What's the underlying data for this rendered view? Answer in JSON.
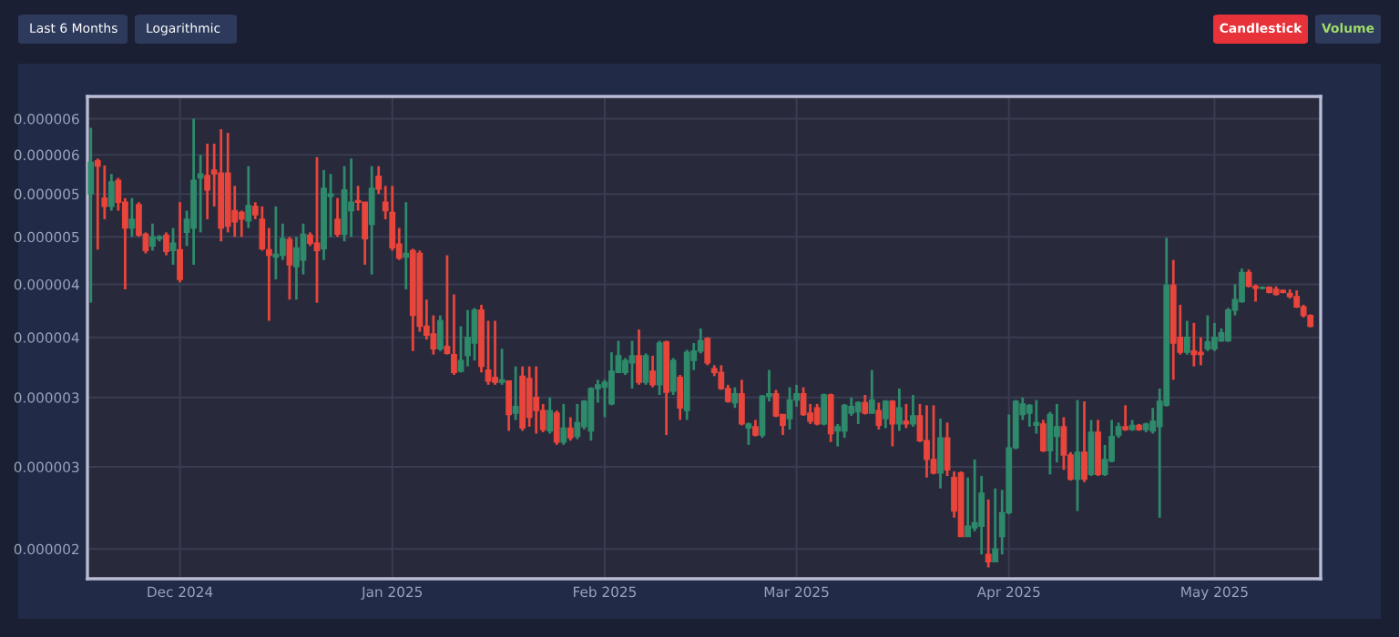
{
  "chart_data": {
    "type": "candlestick",
    "annotations": [
      "Last 6 Months",
      "Logarithmic",
      "Candlestick",
      "Volume"
    ],
    "log": true,
    "grid": true,
    "ylim": [
      2.34e-06,
      6.83e-06
    ],
    "yticks": [
      {
        "value": 6.5e-06,
        "label": "0.000006"
      },
      {
        "value": 6e-06,
        "label": "0.000006"
      },
      {
        "value": 5.5e-06,
        "label": "0.000005"
      },
      {
        "value": 5e-06,
        "label": "0.000005"
      },
      {
        "value": 4.5e-06,
        "label": "0.000004"
      },
      {
        "value": 4e-06,
        "label": "0.000004"
      },
      {
        "value": 3.5e-06,
        "label": "0.000003"
      },
      {
        "value": 3e-06,
        "label": "0.000003"
      },
      {
        "value": 2.5e-06,
        "label": "0.000002"
      }
    ],
    "xlim": [
      "2024-11-17T12:00",
      "2025-05-16T12:00"
    ],
    "xticks": [
      {
        "value": "2024-12-01",
        "label": "Dec 2024"
      },
      {
        "value": "2025-01-01",
        "label": "Jan 2025"
      },
      {
        "value": "2025-02-01",
        "label": "Feb 2025"
      },
      {
        "value": "2025-03-01",
        "label": "Mar 2025"
      },
      {
        "value": "2025-04-01",
        "label": "Apr 2025"
      },
      {
        "value": "2025-05-01",
        "label": "May 2025"
      }
    ],
    "x": [
      "2024-11-18",
      "2024-11-19",
      "2024-11-20",
      "2024-11-21",
      "2024-11-22",
      "2024-11-23",
      "2024-11-24",
      "2024-11-25",
      "2024-11-26",
      "2024-11-27",
      "2024-11-28",
      "2024-11-29",
      "2024-11-30",
      "2024-12-01",
      "2024-12-02",
      "2024-12-03",
      "2024-12-04",
      "2024-12-05",
      "2024-12-06",
      "2024-12-07",
      "2024-12-08",
      "2024-12-09",
      "2024-12-10",
      "2024-12-11",
      "2024-12-12",
      "2024-12-13",
      "2024-12-14",
      "2024-12-15",
      "2024-12-16",
      "2024-12-17",
      "2024-12-18",
      "2024-12-19",
      "2024-12-20",
      "2024-12-21",
      "2024-12-22",
      "2024-12-23",
      "2024-12-24",
      "2024-12-25",
      "2024-12-26",
      "2024-12-27",
      "2024-12-28",
      "2024-12-29",
      "2024-12-30",
      "2024-12-31",
      "2025-01-01",
      "2025-01-02",
      "2025-01-03",
      "2025-01-04",
      "2025-01-05",
      "2025-01-06",
      "2025-01-07",
      "2025-01-08",
      "2025-01-09",
      "2025-01-10",
      "2025-01-11",
      "2025-01-12",
      "2025-01-13",
      "2025-01-14",
      "2025-01-15",
      "2025-01-16",
      "2025-01-17",
      "2025-01-18",
      "2025-01-19",
      "2025-01-20",
      "2025-01-21",
      "2025-01-22",
      "2025-01-23",
      "2025-01-24",
      "2025-01-25",
      "2025-01-26",
      "2025-01-27",
      "2025-01-28",
      "2025-01-29",
      "2025-01-30",
      "2025-01-31",
      "2025-02-01",
      "2025-02-02",
      "2025-02-03",
      "2025-02-04",
      "2025-02-05",
      "2025-02-06",
      "2025-02-07",
      "2025-02-08",
      "2025-02-09",
      "2025-02-10",
      "2025-02-11",
      "2025-02-12",
      "2025-02-13",
      "2025-02-14",
      "2025-02-15",
      "2025-02-16",
      "2025-02-17",
      "2025-02-18",
      "2025-02-19",
      "2025-02-20",
      "2025-02-21",
      "2025-02-22",
      "2025-02-23",
      "2025-02-24",
      "2025-02-25",
      "2025-02-26",
      "2025-02-27",
      "2025-02-28",
      "2025-03-01",
      "2025-03-02",
      "2025-03-03",
      "2025-03-04",
      "2025-03-05",
      "2025-03-06",
      "2025-03-07",
      "2025-03-08",
      "2025-03-09",
      "2025-03-10",
      "2025-03-11",
      "2025-03-12",
      "2025-03-13",
      "2025-03-14",
      "2025-03-15",
      "2025-03-16",
      "2025-03-17",
      "2025-03-18",
      "2025-03-19",
      "2025-03-20",
      "2025-03-21",
      "2025-03-22",
      "2025-03-23",
      "2025-03-24",
      "2025-03-25",
      "2025-03-26",
      "2025-03-27",
      "2025-03-28",
      "2025-03-29",
      "2025-03-30",
      "2025-03-31",
      "2025-04-01",
      "2025-04-02",
      "2025-04-03",
      "2025-04-04",
      "2025-04-05",
      "2025-04-06",
      "2025-04-07",
      "2025-04-08",
      "2025-04-09",
      "2025-04-10",
      "2025-04-11",
      "2025-04-12",
      "2025-04-13",
      "2025-04-14",
      "2025-04-15",
      "2025-04-16",
      "2025-04-17",
      "2025-04-18",
      "2025-04-19",
      "2025-04-20",
      "2025-04-21",
      "2025-04-22",
      "2025-04-23",
      "2025-04-24",
      "2025-04-25",
      "2025-04-26",
      "2025-04-27",
      "2025-04-28",
      "2025-04-29",
      "2025-04-30",
      "2025-05-01",
      "2025-05-02",
      "2025-05-03",
      "2025-05-04",
      "2025-05-05",
      "2025-05-06",
      "2025-05-07",
      "2025-05-08",
      "2025-05-09",
      "2025-05-10",
      "2025-05-11",
      "2025-05-12",
      "2025-05-13",
      "2025-05-14",
      "2025-05-15"
    ],
    "ohlc": [
      [
        5.5e-06,
        6.37e-06,
        4.32e-06,
        5.9e-06
      ],
      [
        5.92e-06,
        5.95e-06,
        4.86e-06,
        5.85e-06
      ],
      [
        5.45e-06,
        5.86e-06,
        5.2e-06,
        5.35e-06
      ],
      [
        5.35e-06,
        5.75e-06,
        5.3e-06,
        5.65e-06
      ],
      [
        5.67e-06,
        5.7e-06,
        5.3e-06,
        5.4e-06
      ],
      [
        5.4e-06,
        5.45e-06,
        4.45e-06,
        5.1e-06
      ],
      [
        5.1e-06,
        5.45e-06,
        5e-06,
        5.2e-06
      ],
      [
        5.37e-06,
        5.4e-06,
        5e-06,
        5.02e-06
      ],
      [
        5.03e-06,
        5.05e-06,
        4.82e-06,
        4.85e-06
      ],
      [
        4.9e-06,
        5.15e-06,
        4.85e-06,
        5e-06
      ],
      [
        4.98e-06,
        5.02e-06,
        4.95e-06,
        5e-06
      ],
      [
        5.02e-06,
        5.05e-06,
        4.8e-06,
        4.84e-06
      ],
      [
        4.85e-06,
        5.1e-06,
        4.7e-06,
        4.93e-06
      ],
      [
        4.86e-06,
        5.4e-06,
        4.52e-06,
        4.55e-06
      ],
      [
        5.05e-06,
        5.3e-06,
        4.9e-06,
        5.2e-06
      ],
      [
        5.1e-06,
        6.5e-06,
        4.7e-06,
        5.67e-06
      ],
      [
        5.7e-06,
        6e-06,
        5.05e-06,
        5.75e-06
      ],
      [
        5.73e-06,
        6.15e-06,
        5.2e-06,
        5.55e-06
      ],
      [
        5.8e-06,
        6.15e-06,
        5.35e-06,
        5.75e-06
      ],
      [
        5.76e-06,
        6.35e-06,
        4.95e-06,
        5.1e-06
      ],
      [
        5.76e-06,
        6.3e-06,
        5.05e-06,
        5.12e-06
      ],
      [
        5.3e-06,
        5.6e-06,
        5e-06,
        5.17e-06
      ],
      [
        5.28e-06,
        5.3e-06,
        5e-06,
        5.2e-06
      ],
      [
        5.18e-06,
        5.85e-06,
        5.1e-06,
        5.36e-06
      ],
      [
        5.35e-06,
        5.4e-06,
        5.2e-06,
        5.25e-06
      ],
      [
        5.2e-06,
        5.35e-06,
        4.85e-06,
        4.87e-06
      ],
      [
        4.86e-06,
        5.1e-06,
        4.15e-06,
        4.8e-06
      ],
      [
        4.78e-06,
        5.35e-06,
        4.55e-06,
        4.81e-06
      ],
      [
        4.8e-06,
        5.15e-06,
        4.75e-06,
        4.98e-06
      ],
      [
        4.97e-06,
        5e-06,
        4.35e-06,
        4.7e-06
      ],
      [
        4.68e-06,
        5e-06,
        4.35e-06,
        4.88e-06
      ],
      [
        4.75e-06,
        5.15e-06,
        4.6e-06,
        5.03e-06
      ],
      [
        5.02e-06,
        5.05e-06,
        4.9e-06,
        4.93e-06
      ],
      [
        4.93e-06,
        5.97e-06,
        4.32e-06,
        4.85e-06
      ],
      [
        4.87e-06,
        5.8e-06,
        4.75e-06,
        5.57e-06
      ],
      [
        5.47e-06,
        5.75e-06,
        5e-06,
        5.5e-06
      ],
      [
        5.2e-06,
        5.45e-06,
        5e-06,
        5.03e-06
      ],
      [
        5.03e-06,
        5.85e-06,
        4.95e-06,
        5.55e-06
      ],
      [
        5.3e-06,
        5.95e-06,
        5e-06,
        5.4e-06
      ],
      [
        5.42e-06,
        5.6e-06,
        5.3e-06,
        5.4e-06
      ],
      [
        5.4e-06,
        5.4e-06,
        4.7e-06,
        4.98e-06
      ],
      [
        5.14e-06,
        5.85e-06,
        4.6e-06,
        5.57e-06
      ],
      [
        5.72e-06,
        5.85e-06,
        5.5e-06,
        5.56e-06
      ],
      [
        5.4e-06,
        5.6e-06,
        5.2e-06,
        5.3e-06
      ],
      [
        5.28e-06,
        5.6e-06,
        4.85e-06,
        4.88e-06
      ],
      [
        4.92e-06,
        5.1e-06,
        4.75e-06,
        4.77e-06
      ],
      [
        4.78e-06,
        5.4e-06,
        4.45e-06,
        4.82e-06
      ],
      [
        4.85e-06,
        4.87e-06,
        3.88e-06,
        4.2e-06
      ],
      [
        4.82e-06,
        4.85e-06,
        4.05e-06,
        4.1e-06
      ],
      [
        4.1e-06,
        4.35e-06,
        3.98e-06,
        4.02e-06
      ],
      [
        4.03e-06,
        4.2e-06,
        3.85e-06,
        3.9e-06
      ],
      [
        3.9e-06,
        4.2e-06,
        3.88e-06,
        4.15e-06
      ],
      [
        3.92e-06,
        4.8e-06,
        3.85e-06,
        3.86e-06
      ],
      [
        3.85e-06,
        4.4e-06,
        3.68e-06,
        3.7e-06
      ],
      [
        3.71e-06,
        4.1e-06,
        3.7e-06,
        3.8e-06
      ],
      [
        3.84e-06,
        4.25e-06,
        3.75e-06,
        4e-06
      ],
      [
        3.95e-06,
        4.27e-06,
        3.8e-06,
        4.25e-06
      ],
      [
        4.25e-06,
        4.3e-06,
        3.7e-06,
        3.75e-06
      ],
      [
        3.72e-06,
        4.15e-06,
        3.6e-06,
        3.63e-06
      ],
      [
        3.66e-06,
        4.15e-06,
        3.6e-06,
        3.62e-06
      ],
      [
        3.62e-06,
        3.9e-06,
        3.6e-06,
        3.64e-06
      ],
      [
        3.63e-06,
        3.63e-06,
        3.25e-06,
        3.37e-06
      ],
      [
        3.38e-06,
        3.75e-06,
        3.33e-06,
        3.43e-06
      ],
      [
        3.67e-06,
        3.75e-06,
        3.25e-06,
        3.27e-06
      ],
      [
        3.65e-06,
        3.75e-06,
        3.28e-06,
        3.35e-06
      ],
      [
        3.5e-06,
        3.75e-06,
        3.23e-06,
        3.4e-06
      ],
      [
        3.4e-06,
        3.45e-06,
        3.24e-06,
        3.26e-06
      ],
      [
        3.25e-06,
        3.5e-06,
        3.23e-06,
        3.4e-06
      ],
      [
        3.38e-06,
        3.4e-06,
        3.15e-06,
        3.17e-06
      ],
      [
        3.17e-06,
        3.45e-06,
        3.15e-06,
        3.27e-06
      ],
      [
        3.27e-06,
        3.35e-06,
        3.18e-06,
        3.2e-06
      ],
      [
        3.21e-06,
        3.45e-06,
        3.19e-06,
        3.31e-06
      ],
      [
        3.28e-06,
        3.48e-06,
        3.26e-06,
        3.47e-06
      ],
      [
        3.25e-06,
        3.58e-06,
        3.18e-06,
        3.57e-06
      ],
      [
        3.57e-06,
        3.64e-06,
        3.46e-06,
        3.6e-06
      ],
      [
        3.58e-06,
        3.64e-06,
        3.35e-06,
        3.62e-06
      ],
      [
        3.45e-06,
        3.87e-06,
        3.44e-06,
        3.71e-06
      ],
      [
        3.7e-06,
        3.97e-06,
        3.7e-06,
        3.84e-06
      ],
      [
        3.7e-06,
        3.82e-06,
        3.68e-06,
        3.8e-06
      ],
      [
        3.78e-06,
        3.97e-06,
        3.57e-06,
        3.84e-06
      ],
      [
        3.84e-06,
        4.07e-06,
        3.6e-06,
        3.62e-06
      ],
      [
        3.62e-06,
        3.86e-06,
        3.6e-06,
        3.84e-06
      ],
      [
        3.71e-06,
        3.84e-06,
        3.58e-06,
        3.6e-06
      ],
      [
        3.6e-06,
        3.97e-06,
        3.52e-06,
        3.95e-06
      ],
      [
        3.96e-06,
        3.97e-06,
        3.22e-06,
        3.54e-06
      ],
      [
        3.55e-06,
        3.82e-06,
        3.52e-06,
        3.8e-06
      ],
      [
        3.66e-06,
        3.68e-06,
        3.33e-06,
        3.42e-06
      ],
      [
        3.4e-06,
        3.89e-06,
        3.33e-06,
        3.87e-06
      ],
      [
        3.8e-06,
        3.95e-06,
        3.72e-06,
        3.88e-06
      ],
      [
        3.88e-06,
        4.08e-06,
        3.86e-06,
        3.97e-06
      ],
      [
        3.99e-06,
        4e-06,
        3.76e-06,
        3.78e-06
      ],
      [
        3.73e-06,
        3.76e-06,
        3.67e-06,
        3.7e-06
      ],
      [
        3.7e-06,
        3.76e-06,
        3.56e-06,
        3.57e-06
      ],
      [
        3.57e-06,
        3.6e-06,
        3.46e-06,
        3.47e-06
      ],
      [
        3.46e-06,
        3.58e-06,
        3.42e-06,
        3.53e-06
      ],
      [
        3.53e-06,
        3.64e-06,
        3.29e-06,
        3.3e-06
      ],
      [
        3.27e-06,
        3.31e-06,
        3.15e-06,
        3.3e-06
      ],
      [
        3.28e-06,
        3.33e-06,
        3.21e-06,
        3.22e-06
      ],
      [
        3.22e-06,
        3.52e-06,
        3.2e-06,
        3.51e-06
      ],
      [
        3.51e-06,
        3.72e-06,
        3.47e-06,
        3.53e-06
      ],
      [
        3.53e-06,
        3.56e-06,
        3.35e-06,
        3.36e-06
      ],
      [
        3.37e-06,
        3.37e-06,
        3.22e-06,
        3.29e-06
      ],
      [
        3.34e-06,
        3.58e-06,
        3.26e-06,
        3.48e-06
      ],
      [
        3.48e-06,
        3.6e-06,
        3.43e-06,
        3.53e-06
      ],
      [
        3.53e-06,
        3.58e-06,
        3.36e-06,
        3.37e-06
      ],
      [
        3.38e-06,
        3.45e-06,
        3.3e-06,
        3.32e-06
      ],
      [
        3.42e-06,
        3.45e-06,
        3.29e-06,
        3.3e-06
      ],
      [
        3.3e-06,
        3.53e-06,
        3.29e-06,
        3.52e-06
      ],
      [
        3.52e-06,
        3.53e-06,
        3.17e-06,
        3.23e-06
      ],
      [
        3.25e-06,
        3.3e-06,
        3.14e-06,
        3.28e-06
      ],
      [
        3.25e-06,
        3.45e-06,
        3.2e-06,
        3.44e-06
      ],
      [
        3.38e-06,
        3.5e-06,
        3.36e-06,
        3.43e-06
      ],
      [
        3.39e-06,
        3.47e-06,
        3.3e-06,
        3.46e-06
      ],
      [
        3.46e-06,
        3.52e-06,
        3.37e-06,
        3.38e-06
      ],
      [
        3.38e-06,
        3.72e-06,
        3.38e-06,
        3.48e-06
      ],
      [
        3.4e-06,
        3.46e-06,
        3.26e-06,
        3.29e-06
      ],
      [
        3.34e-06,
        3.48e-06,
        3.27e-06,
        3.47e-06
      ],
      [
        3.47e-06,
        3.48e-06,
        3.14e-06,
        3.3e-06
      ],
      [
        3.3e-06,
        3.57e-06,
        3.25e-06,
        3.42e-06
      ],
      [
        3.32e-06,
        3.45e-06,
        3.27e-06,
        3.3e-06
      ],
      [
        3.3e-06,
        3.52e-06,
        3.28e-06,
        3.36e-06
      ],
      [
        3.36e-06,
        3.45e-06,
        3.17e-06,
        3.18e-06
      ],
      [
        3.18e-06,
        3.44e-06,
        2.93e-06,
        3.05e-06
      ],
      [
        3.05e-06,
        3.44e-06,
        2.95e-06,
        2.96e-06
      ],
      [
        2.96e-06,
        3.34e-06,
        2.86e-06,
        3.2e-06
      ],
      [
        3.2e-06,
        3.31e-06,
        2.94e-06,
        2.98e-06
      ],
      [
        2.93e-06,
        2.97e-06,
        2.68e-06,
        2.72e-06
      ],
      [
        2.96e-06,
        2.97e-06,
        2.57e-06,
        2.57e-06
      ],
      [
        2.57e-06,
        2.93e-06,
        2.57e-06,
        2.63e-06
      ],
      [
        2.62e-06,
        3.05e-06,
        2.6e-06,
        2.65e-06
      ],
      [
        2.63e-06,
        2.94e-06,
        2.47e-06,
        2.83e-06
      ],
      [
        2.47e-06,
        2.79e-06,
        2.4e-06,
        2.43e-06
      ],
      [
        2.43e-06,
        2.86e-06,
        2.43e-06,
        2.5e-06
      ],
      [
        2.57e-06,
        2.85e-06,
        2.47e-06,
        2.71e-06
      ],
      [
        2.71e-06,
        3.37e-06,
        2.7e-06,
        3.13e-06
      ],
      [
        3.13e-06,
        3.48e-06,
        3.12e-06,
        3.47e-06
      ],
      [
        3.37e-06,
        3.5e-06,
        3.33e-06,
        3.45e-06
      ],
      [
        3.38e-06,
        3.45e-06,
        3.28e-06,
        3.44e-06
      ],
      [
        3.29e-06,
        3.48e-06,
        3.23e-06,
        3.31e-06
      ],
      [
        3.3e-06,
        3.33e-06,
        3.1e-06,
        3.11e-06
      ],
      [
        3.11e-06,
        3.39e-06,
        2.95e-06,
        3.37e-06
      ],
      [
        3.21e-06,
        3.45e-06,
        3.03e-06,
        3.28e-06
      ],
      [
        3.28e-06,
        3.35e-06,
        2.98e-06,
        3.08e-06
      ],
      [
        3.08e-06,
        3.1e-06,
        2.91e-06,
        2.92e-06
      ],
      [
        2.92e-06,
        3.48e-06,
        2.72e-06,
        3.1e-06
      ],
      [
        3.1e-06,
        3.47e-06,
        2.9e-06,
        2.92e-06
      ],
      [
        2.95e-06,
        3.33e-06,
        2.94e-06,
        3.24e-06
      ],
      [
        3.24e-06,
        3.33e-06,
        2.94e-06,
        2.95e-06
      ],
      [
        2.95e-06,
        3.15e-06,
        2.94e-06,
        3.05e-06
      ],
      [
        3.04e-06,
        3.33e-06,
        3.03e-06,
        3.21e-06
      ],
      [
        3.22e-06,
        3.31e-06,
        3.2e-06,
        3.28e-06
      ],
      [
        3.28e-06,
        3.44e-06,
        3.25e-06,
        3.26e-06
      ],
      [
        3.26e-06,
        3.33e-06,
        3.25e-06,
        3.29e-06
      ],
      [
        3.29e-06,
        3.3e-06,
        3.25e-06,
        3.26e-06
      ],
      [
        3.26e-06,
        3.31e-06,
        3.24e-06,
        3.3e-06
      ],
      [
        3.25e-06,
        3.42e-06,
        3.23e-06,
        3.32e-06
      ],
      [
        3.28e-06,
        3.57e-06,
        2.68e-06,
        3.47e-06
      ],
      [
        3.44e-06,
        4.99e-06,
        3.43e-06,
        4.49e-06
      ],
      [
        4.49e-06,
        4.75e-06,
        3.64e-06,
        3.95e-06
      ],
      [
        4e-06,
        4.3e-06,
        3.85e-06,
        3.87e-06
      ],
      [
        3.87e-06,
        4.15e-06,
        3.85e-06,
        4e-06
      ],
      [
        3.88e-06,
        4.13e-06,
        3.75e-06,
        3.85e-06
      ],
      [
        3.87e-06,
        4e-06,
        3.76e-06,
        3.85e-06
      ],
      [
        3.9e-06,
        4.2e-06,
        3.88e-06,
        3.96e-06
      ],
      [
        3.9e-06,
        4.13e-06,
        3.88e-06,
        4e-06
      ],
      [
        3.97e-06,
        4.08e-06,
        3.96e-06,
        4.04e-06
      ],
      [
        3.97e-06,
        4.27e-06,
        3.96e-06,
        4.25e-06
      ],
      [
        4.25e-06,
        4.5e-06,
        4.2e-06,
        4.35e-06
      ],
      [
        4.33e-06,
        4.66e-06,
        4.32e-06,
        4.62e-06
      ],
      [
        4.62e-06,
        4.65e-06,
        4.47e-06,
        4.48e-06
      ],
      [
        4.48e-06,
        4.5e-06,
        4.33e-06,
        4.46e-06
      ],
      [
        4.46e-06,
        4.48e-06,
        4.45e-06,
        4.47e-06
      ],
      [
        4.47e-06,
        4.48e-06,
        4.41e-06,
        4.42e-06
      ],
      [
        4.45e-06,
        4.48e-06,
        4.39e-06,
        4.4e-06
      ],
      [
        4.44e-06,
        4.45e-06,
        4.41e-06,
        4.42e-06
      ],
      [
        4.41e-06,
        4.45e-06,
        4.36e-06,
        4.38e-06
      ],
      [
        4.38e-06,
        4.44e-06,
        4.27e-06,
        4.28e-06
      ],
      [
        4.28e-06,
        4.3e-06,
        4.18e-06,
        4.2e-06
      ],
      [
        4.2e-06,
        4.21e-06,
        4.09e-06,
        4.1e-06
      ]
    ]
  }
}
